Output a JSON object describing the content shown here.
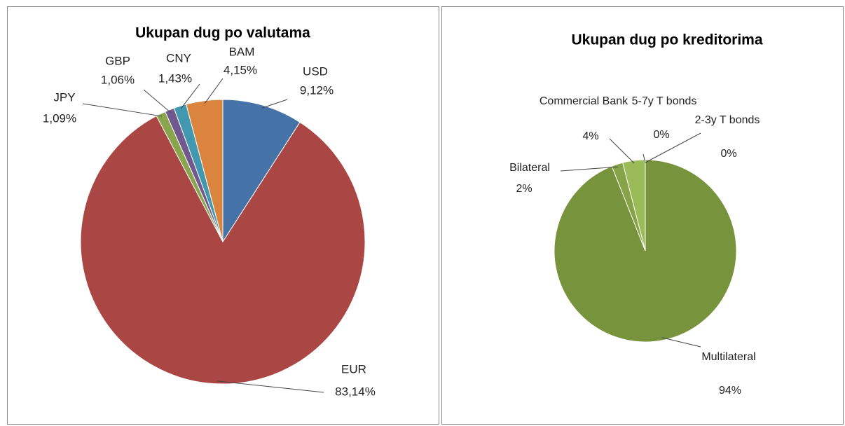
{
  "chart_data": [
    {
      "type": "pie",
      "title": "Ukupan dug po valutama",
      "categories": [
        "USD",
        "EUR",
        "JPY",
        "GBP",
        "CNY",
        "BAM"
      ],
      "values": [
        9.12,
        83.14,
        1.09,
        1.06,
        1.43,
        4.15
      ],
      "value_labels": [
        "9,12%",
        "83,14%",
        "1,09%",
        "1,06%",
        "1,43%",
        "4,15%"
      ],
      "colors": [
        "#4572a7",
        "#aa4643",
        "#89a54e",
        "#71588f",
        "#4198af",
        "#db843d"
      ]
    },
    {
      "type": "pie",
      "title": "Ukupan dug po kreditorima",
      "categories": [
        "Multilateral",
        "Bilateral",
        "Commercial Bank",
        "5-7y T bonds",
        "2-3y T bonds"
      ],
      "values": [
        94,
        2,
        4,
        0,
        0
      ],
      "value_labels": [
        "94%",
        "2%",
        "4%",
        "0%",
        "0%"
      ],
      "colors": [
        "#77933c",
        "#86a347",
        "#9bbb59",
        "#a9c46a",
        "#b6cf7c"
      ]
    }
  ]
}
